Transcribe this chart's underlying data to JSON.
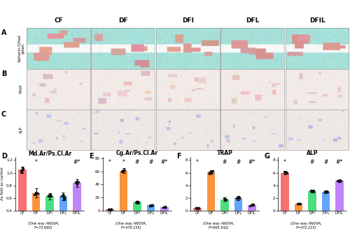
{
  "groups": [
    "CF",
    "DF",
    "DFI",
    "DFL",
    "DFIL"
  ],
  "bar_colors": [
    "#F87171",
    "#FB923C",
    "#4ADE80",
    "#60A5FA",
    "#C084FC"
  ],
  "panel_D": {
    "title": "Md.Ar/Ps.Cl.Ar",
    "ylabel": "As fold as control",
    "ylim": [
      0.4,
      1.25
    ],
    "yticks": [
      0.4,
      0.6,
      0.8,
      1.0,
      1.2
    ],
    "values": [
      1.05,
      0.68,
      0.63,
      0.63,
      0.84
    ],
    "errors": [
      0.05,
      0.07,
      0.05,
      0.06,
      0.06
    ],
    "significance": [
      "",
      "*",
      "",
      "",
      "#*"
    ],
    "anova": "(One way ANOVA,\nF=73.690)"
  },
  "panel_E": {
    "title": "Cg.Ar/Ps.Cl.Ar",
    "ylabel": "As fold as control",
    "ylim": [
      0,
      82
    ],
    "yticks": [
      0,
      20,
      40,
      60,
      80
    ],
    "values": [
      2.0,
      61.0,
      13.0,
      8.0,
      5.5
    ],
    "errors": [
      0.5,
      3.5,
      2.0,
      1.5,
      1.0
    ],
    "significance": [
      "*",
      "*",
      "#",
      "#",
      "#*"
    ],
    "anova": "(One way ANOVA,\nF=479.155)"
  },
  "panel_F": {
    "title": "TRAP",
    "ylabel": "As fold as control",
    "ylim": [
      0,
      8.5
    ],
    "yticks": [
      0,
      2,
      4,
      6,
      8
    ],
    "values": [
      0.4,
      6.1,
      1.8,
      2.0,
      0.9
    ],
    "errors": [
      0.1,
      0.3,
      0.25,
      0.3,
      0.15
    ],
    "significance": [
      "*",
      "",
      "#",
      "#",
      "#*"
    ],
    "anova": "(One way ANOVA,\nF=665.542)"
  },
  "panel_G": {
    "title": "ALP",
    "ylabel": "As fold as control",
    "ylim": [
      0,
      8.5
    ],
    "yticks": [
      0,
      2,
      4,
      6,
      8
    ],
    "values": [
      6.0,
      1.1,
      3.1,
      3.0,
      4.7
    ],
    "errors": [
      0.25,
      0.15,
      0.25,
      0.2,
      0.2
    ],
    "significance": [
      "*",
      "",
      "#",
      "#",
      "#*"
    ],
    "anova": "(One way ANOVA,\nF=472.215)"
  },
  "row_labels": [
    "Safranin-O/fast\ngreen",
    "TRAP",
    "ALP"
  ],
  "panel_abc": [
    "A",
    "B",
    "C"
  ],
  "panel_defg": [
    "D",
    "E",
    "F",
    "G"
  ],
  "n_img_cols": 5,
  "safranin_colors": {
    "teal": [
      0.65,
      0.88,
      0.85
    ],
    "red": [
      0.85,
      0.6,
      0.6
    ],
    "white": [
      0.97,
      0.97,
      0.97
    ],
    "bg": [
      0.93,
      0.91,
      0.89
    ]
  },
  "trap_colors": {
    "bg": [
      0.95,
      0.92,
      0.91
    ],
    "pink": [
      0.9,
      0.78,
      0.78
    ]
  },
  "alp_colors": {
    "bg": [
      0.93,
      0.91,
      0.9
    ],
    "blue": [
      0.75,
      0.75,
      0.88
    ]
  }
}
